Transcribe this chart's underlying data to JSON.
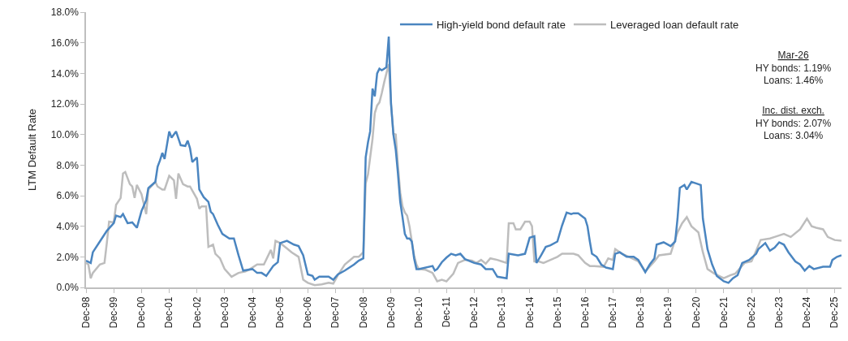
{
  "chart_data": {
    "type": "line",
    "ylabel": "LTM Default Rate",
    "legend": "top",
    "marker": "none",
    "line_style": "solid",
    "xlim": [
      "1998-12",
      "2026-03"
    ],
    "xticks": [
      {
        "value": "1998-12",
        "label": "Dec-98"
      },
      {
        "value": "1999-12",
        "label": "Dec-99"
      },
      {
        "value": "2000-12",
        "label": "Dec-00"
      },
      {
        "value": "2001-12",
        "label": "Dec-01"
      },
      {
        "value": "2002-12",
        "label": "Dec-02"
      },
      {
        "value": "2003-12",
        "label": "Dec-03"
      },
      {
        "value": "2004-12",
        "label": "Dec-04"
      },
      {
        "value": "2005-12",
        "label": "Dec-05"
      },
      {
        "value": "2006-12",
        "label": "Dec-06"
      },
      {
        "value": "2007-12",
        "label": "Dec-07"
      },
      {
        "value": "2008-12",
        "label": "Dec-08"
      },
      {
        "value": "2009-12",
        "label": "Dec-09"
      },
      {
        "value": "2010-12",
        "label": "Dec-10"
      },
      {
        "value": "2011-12",
        "label": "Dec-11"
      },
      {
        "value": "2012-12",
        "label": "Dec-12"
      },
      {
        "value": "2013-12",
        "label": "Dec-13"
      },
      {
        "value": "2014-12",
        "label": "Dec-14"
      },
      {
        "value": "2015-12",
        "label": "Dec-15"
      },
      {
        "value": "2016-12",
        "label": "Dec-16"
      },
      {
        "value": "2017-12",
        "label": "Dec-17"
      },
      {
        "value": "2018-12",
        "label": "Dec-18"
      },
      {
        "value": "2019-12",
        "label": "Dec-19"
      },
      {
        "value": "2020-12",
        "label": "Dec-20"
      },
      {
        "value": "2021-12",
        "label": "Dec-21"
      },
      {
        "value": "2022-12",
        "label": "Dec-22"
      },
      {
        "value": "2023-12",
        "label": "Dec-23"
      },
      {
        "value": "2024-12",
        "label": "Dec-24"
      },
      {
        "value": "2025-12",
        "label": "Dec-25"
      }
    ],
    "ylim": [
      0,
      18
    ],
    "yticks": [
      {
        "value": 0,
        "label": "0.0%"
      },
      {
        "value": 2,
        "label": "2.0%"
      },
      {
        "value": 4,
        "label": "4.0%"
      },
      {
        "value": 6,
        "label": "6.0%"
      },
      {
        "value": 8,
        "label": "8.0%"
      },
      {
        "value": 10,
        "label": "10.0%"
      },
      {
        "value": 12,
        "label": "12.0%"
      },
      {
        "value": 14,
        "label": "14.0%"
      },
      {
        "value": 16,
        "label": "16.0%"
      },
      {
        "value": 18,
        "label": "18.0%"
      }
    ],
    "annotations": [
      "Mar-26\nHY bonds: 1.19%\nLoans: 1.46%",
      "Inc. dist. exch.\nHY bonds: 2.07%\nLoans: 3.04%"
    ],
    "series": [
      {
        "name": "High-yield bond default rate",
        "color": "#4a85c0",
        "x": [
          "1998-12",
          "1999-02",
          "1999-03",
          "1999-06",
          "1999-09",
          "1999-12",
          "2000-01",
          "2000-03",
          "2000-04",
          "2000-06",
          "2000-08",
          "2000-10",
          "2000-12",
          "2001-02",
          "2001-03",
          "2001-06",
          "2001-07",
          "2001-08",
          "2001-09",
          "2001-10",
          "2001-12",
          "2002-01",
          "2002-03",
          "2002-05",
          "2002-07",
          "2002-08",
          "2002-09",
          "2002-10",
          "2002-12",
          "2003-01",
          "2003-03",
          "2003-05",
          "2003-06",
          "2003-07",
          "2003-09",
          "2003-11",
          "2004-02",
          "2004-04",
          "2004-06",
          "2004-08",
          "2004-12",
          "2005-02",
          "2005-04",
          "2005-06",
          "2005-09",
          "2005-11",
          "2005-12",
          "2006-03",
          "2006-06",
          "2006-08",
          "2006-10",
          "2006-12",
          "2007-02",
          "2007-03",
          "2007-05",
          "2007-09",
          "2007-11",
          "2008-01",
          "2008-04",
          "2008-08",
          "2008-10",
          "2008-12",
          "2009-01",
          "2009-02",
          "2009-03",
          "2009-04",
          "2009-05",
          "2009-06",
          "2009-07",
          "2009-08",
          "2009-09",
          "2009-10",
          "2009-11",
          "2009-12",
          "2010-01",
          "2010-02",
          "2010-03",
          "2010-04",
          "2010-05",
          "2010-06",
          "2010-07",
          "2010-08",
          "2010-09",
          "2010-10",
          "2010-11",
          "2010-12",
          "2011-06",
          "2011-07",
          "2011-08",
          "2011-10",
          "2011-12",
          "2012-02",
          "2012-04",
          "2012-06",
          "2012-08",
          "2012-12",
          "2013-03",
          "2013-05",
          "2013-08",
          "2013-10",
          "2014-02",
          "2014-03",
          "2014-07",
          "2014-10",
          "2014-12",
          "2015-02",
          "2015-03",
          "2015-05",
          "2015-07",
          "2015-09",
          "2015-12",
          "2016-02",
          "2016-04",
          "2016-06",
          "2016-07",
          "2016-09",
          "2016-12",
          "2017-01",
          "2017-02",
          "2017-03",
          "2017-05",
          "2017-07",
          "2017-09",
          "2017-12",
          "2018-01",
          "2018-03",
          "2018-06",
          "2018-09",
          "2018-11",
          "2019-02",
          "2019-04",
          "2019-06",
          "2019-07",
          "2019-10",
          "2020-01",
          "2020-03",
          "2020-04",
          "2020-05",
          "2020-07",
          "2020-08",
          "2020-10",
          "2020-12",
          "2021-02",
          "2021-03",
          "2021-05",
          "2021-07",
          "2021-09",
          "2021-12",
          "2022-02",
          "2022-04",
          "2022-06",
          "2022-08",
          "2022-11",
          "2023-02",
          "2023-03",
          "2023-06",
          "2023-08",
          "2023-10",
          "2023-12",
          "2024-02",
          "2024-04",
          "2024-07",
          "2024-09",
          "2024-11",
          "2025-01",
          "2025-03",
          "2025-07",
          "2025-10",
          "2025-11",
          "2026-01",
          "2026-03"
        ],
        "values": [
          1.75,
          1.6,
          2.3,
          3.0,
          3.7,
          4.2,
          4.7,
          4.6,
          4.8,
          4.2,
          4.25,
          3.9,
          5.0,
          5.7,
          6.5,
          6.9,
          7.9,
          8.3,
          8.8,
          8.4,
          10.2,
          9.8,
          10.2,
          9.3,
          9.25,
          9.6,
          9.1,
          8.2,
          8.5,
          6.4,
          5.9,
          5.6,
          4.95,
          4.8,
          4.1,
          3.5,
          3.2,
          3.2,
          2.1,
          1.1,
          1.2,
          0.95,
          0.95,
          0.75,
          1.4,
          1.65,
          2.9,
          3.05,
          2.8,
          2.7,
          2.1,
          0.85,
          0.75,
          0.5,
          0.7,
          0.7,
          0.5,
          0.85,
          1.1,
          1.5,
          1.75,
          1.9,
          8.5,
          9.5,
          10.2,
          13.0,
          12.5,
          14.0,
          14.3,
          14.2,
          14.3,
          14.4,
          16.4,
          12.0,
          10.0,
          9.0,
          7.5,
          5.6,
          4.6,
          3.5,
          3.2,
          3.2,
          3.0,
          1.9,
          1.2,
          1.2,
          1.4,
          1.1,
          1.2,
          1.65,
          1.95,
          2.2,
          2.1,
          2.2,
          1.85,
          1.6,
          1.5,
          1.2,
          1.2,
          0.7,
          0.6,
          2.2,
          2.1,
          2.2,
          3.25,
          3.35,
          1.6,
          2.1,
          2.65,
          2.75,
          3.0,
          4.05,
          4.9,
          4.8,
          4.85,
          4.85,
          4.5,
          4.0,
          3.0,
          2.2,
          2.0,
          1.5,
          1.3,
          1.2,
          2.2,
          2.3,
          2.0,
          2.0,
          1.8,
          1.0,
          1.5,
          1.9,
          2.8,
          2.95,
          2.7,
          3.0,
          4.5,
          6.5,
          6.7,
          6.4,
          6.9,
          6.8,
          6.7,
          4.5,
          2.5,
          1.5,
          0.75,
          0.4,
          0.3,
          0.6,
          0.8,
          1.6,
          1.8,
          2.2,
          2.5,
          2.9,
          2.4,
          2.6,
          2.95,
          2.8,
          2.3,
          1.7,
          1.5,
          1.1,
          1.4,
          1.2,
          1.35,
          1.35,
          1.8,
          2.0,
          2.1
        ]
      },
      {
        "name": "Leveraged loan default rate",
        "color": "#bdbdbd",
        "x": [
          "1998-12",
          "1999-01",
          "1999-02",
          "1999-03",
          "1999-06",
          "1999-08",
          "1999-09",
          "1999-10",
          "1999-12",
          "2000-01",
          "2000-03",
          "2000-04",
          "2000-05",
          "2000-07",
          "2000-08",
          "2000-09",
          "2000-10",
          "2000-12",
          "2001-02",
          "2001-03",
          "2001-06",
          "2001-07",
          "2001-09",
          "2001-10",
          "2001-12",
          "2002-02",
          "2002-03",
          "2002-04",
          "2002-06",
          "2002-08",
          "2002-09",
          "2002-12",
          "2003-01",
          "2003-02",
          "2003-04",
          "2003-05",
          "2003-07",
          "2003-08",
          "2003-10",
          "2003-12",
          "2004-03",
          "2004-06",
          "2004-09",
          "2004-11",
          "2005-02",
          "2005-05",
          "2005-08",
          "2005-09",
          "2005-10",
          "2005-12",
          "2006-03",
          "2006-05",
          "2006-08",
          "2006-10",
          "2006-12",
          "2007-03",
          "2007-06",
          "2007-09",
          "2007-11",
          "2008-01",
          "2008-04",
          "2008-08",
          "2008-10",
          "2008-12",
          "2009-01",
          "2009-02",
          "2009-03",
          "2009-04",
          "2009-05",
          "2009-06",
          "2009-07",
          "2009-08",
          "2009-09",
          "2009-10",
          "2009-11",
          "2009-12",
          "2010-01",
          "2010-02",
          "2010-03",
          "2010-04",
          "2010-05",
          "2010-06",
          "2010-07",
          "2010-08",
          "2010-09",
          "2010-10",
          "2010-11",
          "2010-12",
          "2011-03",
          "2011-06",
          "2011-08",
          "2011-10",
          "2011-12",
          "2012-03",
          "2012-05",
          "2012-08",
          "2012-11",
          "2013-01",
          "2013-03",
          "2013-05",
          "2013-07",
          "2013-10",
          "2013-12",
          "2014-02",
          "2014-03",
          "2014-05",
          "2014-06",
          "2014-08",
          "2014-10",
          "2014-12",
          "2015-01",
          "2015-02",
          "2015-04",
          "2015-06",
          "2015-09",
          "2015-12",
          "2016-02",
          "2016-04",
          "2016-07",
          "2016-09",
          "2016-12",
          "2017-02",
          "2017-04",
          "2017-08",
          "2017-10",
          "2017-12",
          "2018-01",
          "2018-04",
          "2018-07",
          "2018-11",
          "2019-02",
          "2019-06",
          "2019-08",
          "2020-01",
          "2020-04",
          "2020-06",
          "2020-08",
          "2020-10",
          "2021-01",
          "2021-03",
          "2021-05",
          "2021-08",
          "2021-12",
          "2022-03",
          "2022-05",
          "2022-09",
          "2022-12",
          "2023-02",
          "2023-04",
          "2023-08",
          "2023-10",
          "2024-02",
          "2024-05",
          "2024-09",
          "2024-12",
          "2025-02",
          "2025-04",
          "2025-07",
          "2025-09",
          "2025-12",
          "2026-03"
        ],
        "values": [
          1.6,
          1.5,
          0.6,
          0.95,
          1.5,
          1.6,
          2.9,
          4.3,
          4.25,
          5.4,
          5.85,
          7.45,
          7.55,
          6.75,
          6.6,
          5.85,
          6.7,
          6.1,
          4.8,
          6.4,
          6.9,
          6.6,
          6.4,
          6.4,
          7.3,
          7.0,
          5.8,
          7.45,
          6.75,
          6.6,
          6.6,
          5.8,
          5.15,
          5.3,
          5.3,
          2.65,
          2.8,
          2.2,
          1.9,
          1.2,
          0.7,
          0.95,
          1.05,
          1.2,
          1.5,
          1.5,
          2.45,
          1.9,
          3.05,
          2.9,
          2.55,
          2.3,
          2.0,
          0.5,
          0.3,
          0.15,
          0.2,
          0.3,
          0.25,
          0.8,
          1.5,
          2.0,
          2.0,
          2.3,
          6.8,
          7.4,
          8.5,
          9.7,
          11.4,
          11.9,
          12.1,
          12.7,
          13.4,
          14.0,
          14.6,
          12.0,
          10.05,
          10.0,
          8.0,
          6.2,
          5.3,
          4.9,
          4.7,
          4.0,
          3.0,
          2.1,
          1.5,
          1.2,
          1.15,
          0.95,
          0.4,
          0.5,
          0.4,
          0.9,
          1.6,
          1.8,
          1.75,
          1.6,
          1.8,
          1.55,
          1.9,
          1.8,
          1.7,
          1.6,
          4.2,
          4.2,
          3.8,
          3.8,
          4.3,
          4.3,
          4.0,
          1.7,
          1.7,
          1.6,
          1.8,
          2.0,
          2.2,
          2.2,
          2.2,
          2.1,
          1.6,
          1.4,
          1.4,
          1.35,
          1.9,
          1.8,
          2.5,
          2.2,
          2.0,
          1.7,
          1.05,
          1.7,
          2.1,
          2.2,
          3.6,
          4.2,
          4.6,
          4.0,
          3.6,
          2.3,
          1.2,
          0.9,
          0.6,
          0.8,
          0.9,
          1.6,
          1.7,
          2.4,
          3.1,
          3.2,
          3.3,
          3.5,
          3.3,
          3.8,
          4.5,
          4.0,
          3.9,
          3.8,
          3.3,
          3.1,
          3.05
        ]
      }
    ]
  }
}
